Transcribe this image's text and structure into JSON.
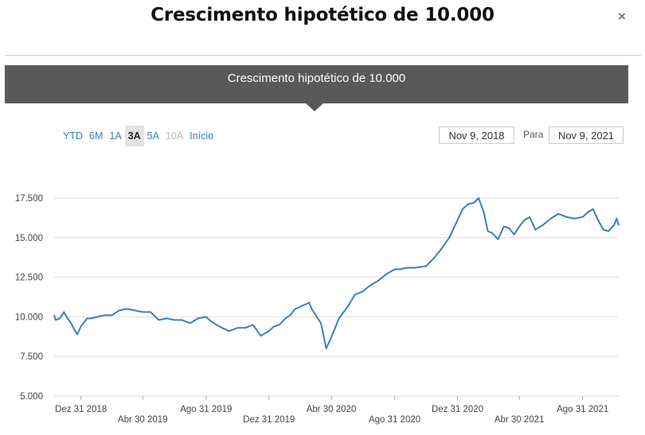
{
  "modal": {
    "title": "Crescimento hipotético de 10.000",
    "close_label": "×"
  },
  "chart_header": {
    "title": "Crescimento hipotético de 10.000"
  },
  "range_selector": {
    "buttons": [
      {
        "label": "YTD",
        "state": "normal"
      },
      {
        "label": "6M",
        "state": "normal"
      },
      {
        "label": "1A",
        "state": "normal"
      },
      {
        "label": "3A",
        "state": "active"
      },
      {
        "label": "5A",
        "state": "normal"
      },
      {
        "label": "10A",
        "state": "disabled"
      },
      {
        "label": "Início",
        "state": "normal"
      }
    ],
    "from_date": "Nov 9, 2018",
    "to_label": "Para",
    "to_date": "Nov 9, 2021"
  },
  "colors": {
    "line": "#3a7fc1",
    "line_end": "#5a9a6a",
    "grid": "#dddddd",
    "banner": "#595959"
  },
  "chart_data": {
    "type": "line",
    "title": "Crescimento hipotético de 10.000",
    "xlabel": "",
    "ylabel": "",
    "ylim": [
      5000,
      17500
    ],
    "y_ticks": [
      5000,
      7500,
      10000,
      12500,
      15000,
      17500
    ],
    "y_tick_labels": [
      "5.000",
      "7.500",
      "10.000",
      "12.500",
      "15.000",
      "17.500"
    ],
    "x_range": [
      "2018-11-09",
      "2021-11-09"
    ],
    "x_ticks": [
      {
        "date": "2018-12-31",
        "label": "Dez 31 2018"
      },
      {
        "date": "2019-04-30",
        "label": "Abr 30 2019"
      },
      {
        "date": "2019-08-31",
        "label": "Ago 31 2019"
      },
      {
        "date": "2019-12-31",
        "label": "Dez 31 2019"
      },
      {
        "date": "2020-04-30",
        "label": "Abr 30 2020"
      },
      {
        "date": "2020-08-31",
        "label": "Ago 31 2020"
      },
      {
        "date": "2020-12-31",
        "label": "Dez 31 2020"
      },
      {
        "date": "2021-04-30",
        "label": "Abr 30 2021"
      },
      {
        "date": "2021-08-31",
        "label": "Ago 31 2021"
      }
    ],
    "grid": true,
    "legend": "none",
    "series": [
      {
        "x": [
          "2018-11-09",
          "2018-11-12",
          "2018-11-20",
          "2018-11-28",
          "2018-12-05",
          "2018-12-12",
          "2018-12-18",
          "2018-12-24",
          "2018-12-31",
          "2019-01-05",
          "2019-01-12",
          "2019-01-20",
          "2019-02-01",
          "2019-02-15",
          "2019-03-01",
          "2019-03-15",
          "2019-03-30",
          "2019-04-15",
          "2019-04-30",
          "2019-05-15",
          "2019-05-31",
          "2019-06-15",
          "2019-07-01",
          "2019-07-15",
          "2019-07-31",
          "2019-08-15",
          "2019-08-31",
          "2019-09-10",
          "2019-09-20",
          "2019-10-01",
          "2019-10-15",
          "2019-10-31",
          "2019-11-15",
          "2019-11-30",
          "2019-12-15",
          "2019-12-31",
          "2020-01-10",
          "2020-01-20",
          "2020-02-01",
          "2020-02-10",
          "2020-02-20",
          "2020-02-28",
          "2020-03-05",
          "2020-03-12",
          "2020-03-18",
          "2020-03-23",
          "2020-03-31",
          "2020-04-10",
          "2020-04-20",
          "2020-04-30",
          "2020-05-15",
          "2020-05-31",
          "2020-06-15",
          "2020-06-30",
          "2020-07-15",
          "2020-07-31",
          "2020-08-15",
          "2020-08-31",
          "2020-09-10",
          "2020-09-25",
          "2020-10-10",
          "2020-10-31",
          "2020-11-15",
          "2020-11-30",
          "2020-12-15",
          "2020-12-31",
          "2021-01-10",
          "2021-01-20",
          "2021-02-01",
          "2021-02-10",
          "2021-02-20",
          "2021-02-28",
          "2021-03-08",
          "2021-03-20",
          "2021-03-31",
          "2021-04-10",
          "2021-04-20",
          "2021-04-30",
          "2021-05-10",
          "2021-05-20",
          "2021-05-31",
          "2021-06-15",
          "2021-06-30",
          "2021-07-15",
          "2021-07-31",
          "2021-08-15",
          "2021-08-31",
          "2021-09-10",
          "2021-09-20",
          "2021-09-30",
          "2021-10-10",
          "2021-10-20",
          "2021-10-31",
          "2021-11-05",
          "2021-11-09"
        ],
        "y": [
          10100,
          9800,
          9900,
          10300,
          9900,
          9600,
          9200,
          8900,
          9400,
          9600,
          9900,
          9900,
          10000,
          10100,
          10100,
          10400,
          10500,
          10400,
          10300,
          10300,
          9800,
          9900,
          9800,
          9800,
          9600,
          9900,
          10000,
          9700,
          9500,
          9300,
          9100,
          9300,
          9300,
          9500,
          8800,
          9100,
          9400,
          9500,
          9900,
          10100,
          10500,
          10600,
          10700,
          10800,
          10900,
          10500,
          10100,
          9600,
          8000,
          8700,
          9900,
          10600,
          11400,
          11600,
          12000,
          12300,
          12700,
          13000,
          13000,
          13100,
          13100,
          13200,
          13700,
          14300,
          15000,
          16100,
          16800,
          17100,
          17200,
          17500,
          16600,
          15400,
          15300,
          14900,
          15700,
          15600,
          15200,
          15700,
          16100,
          16300,
          15500,
          15800,
          16200,
          16500,
          16300,
          16200,
          16300,
          16600,
          16800,
          16100,
          15500,
          15400,
          15800,
          16200,
          15800
        ]
      }
    ]
  }
}
